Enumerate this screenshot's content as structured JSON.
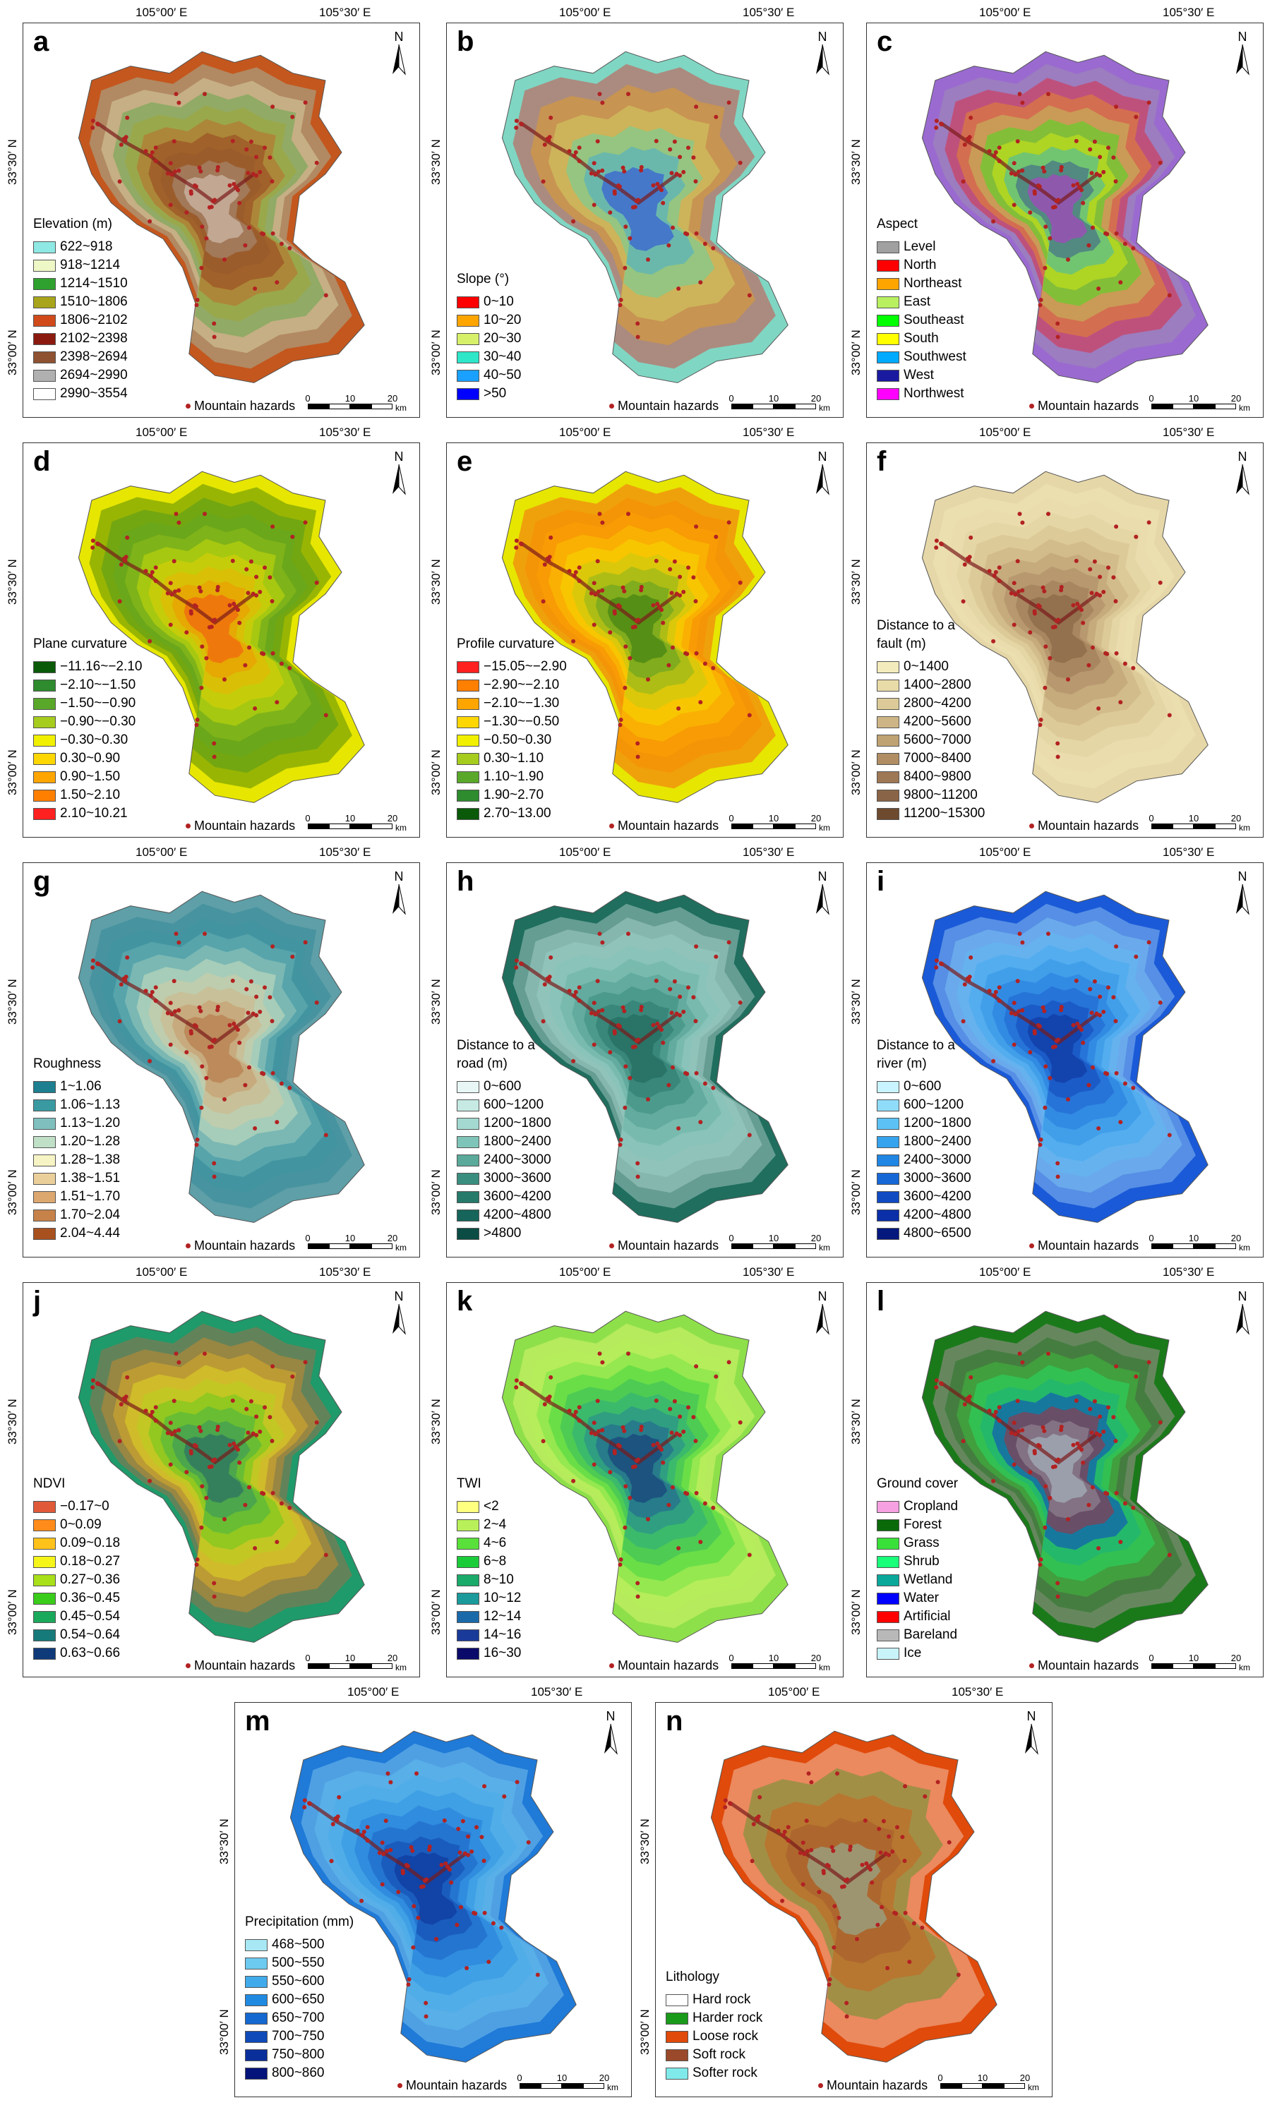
{
  "axes": {
    "lon_left": "105°00′ E",
    "lon_right": "105°30′ E",
    "lat_top": "33°30′ N",
    "lat_bottom": "33°00′ N"
  },
  "common": {
    "hazard_label": "Mountain hazards",
    "scale_ticks": [
      "0",
      "10",
      "20"
    ],
    "scale_unit": "km",
    "north": "N",
    "hazard_color": "#b22222"
  },
  "panels": [
    {
      "label": "a",
      "title": "Elevation (m)",
      "base": "#c4571e",
      "items": [
        {
          "text": "622~918",
          "color": "#8ee8e3"
        },
        {
          "text": "918~1214",
          "color": "#eef7c6"
        },
        {
          "text": "1214~1510",
          "color": "#2ea12e"
        },
        {
          "text": "1510~1806",
          "color": "#a8a51a"
        },
        {
          "text": "1806~2102",
          "color": "#d04a1a"
        },
        {
          "text": "2102~2398",
          "color": "#8b1a0e"
        },
        {
          "text": "2398~2694",
          "color": "#8e5232"
        },
        {
          "text": "2694~2990",
          "color": "#b0b0b0"
        },
        {
          "text": "2990~3554",
          "color": "#ffffff"
        }
      ]
    },
    {
      "label": "b",
      "title": "Slope (°)",
      "base": "#7fd6c3",
      "items": [
        {
          "text": "0~10",
          "color": "#ff0000"
        },
        {
          "text": "10~20",
          "color": "#ffa500"
        },
        {
          "text": "20~30",
          "color": "#d6f06a"
        },
        {
          "text": "30~40",
          "color": "#2ee6c8"
        },
        {
          "text": "40~50",
          "color": "#1aa0ff"
        },
        {
          "text": ">50",
          "color": "#0000ff"
        }
      ]
    },
    {
      "label": "c",
      "title": "Aspect",
      "base": "#9a6ad0",
      "items": [
        {
          "text": "Level",
          "color": "#a0a0a0"
        },
        {
          "text": "North",
          "color": "#ff0000"
        },
        {
          "text": "Northeast",
          "color": "#ffa500"
        },
        {
          "text": "East",
          "color": "#b8f060"
        },
        {
          "text": "Southeast",
          "color": "#00ff00"
        },
        {
          "text": "South",
          "color": "#ffff00"
        },
        {
          "text": "Southwest",
          "color": "#00aaff"
        },
        {
          "text": "West",
          "color": "#1a1aa0"
        },
        {
          "text": "Northwest",
          "color": "#ff00ff"
        }
      ]
    },
    {
      "label": "d",
      "title": "Plane curvature",
      "base": "#e6e600",
      "items": [
        {
          "text": "−11.16~−2.10",
          "color": "#0a5a0a"
        },
        {
          "text": "−2.10~−1.50",
          "color": "#2e8b2e"
        },
        {
          "text": "−1.50~−0.90",
          "color": "#5aa82a"
        },
        {
          "text": "−0.90~−0.30",
          "color": "#a6cc1e"
        },
        {
          "text": "−0.30~0.30",
          "color": "#f0f000"
        },
        {
          "text": "0.30~0.90",
          "color": "#ffd700"
        },
        {
          "text": "0.90~1.50",
          "color": "#ffa500"
        },
        {
          "text": "1.50~2.10",
          "color": "#ff7f00"
        },
        {
          "text": "2.10~10.21",
          "color": "#ff2020"
        }
      ]
    },
    {
      "label": "e",
      "title": "Profile curvature",
      "base": "#e6e600",
      "items": [
        {
          "text": "−15.05~−2.90",
          "color": "#ff2020"
        },
        {
          "text": "−2.90~−2.10",
          "color": "#ff7f00"
        },
        {
          "text": "−2.10~−1.30",
          "color": "#ffa500"
        },
        {
          "text": "−1.30~−0.50",
          "color": "#ffd700"
        },
        {
          "text": "−0.50~0.30",
          "color": "#f0f000"
        },
        {
          "text": "0.30~1.10",
          "color": "#a6cc1e"
        },
        {
          "text": "1.10~1.90",
          "color": "#5aa82a"
        },
        {
          "text": "1.90~2.70",
          "color": "#2e8b2e"
        },
        {
          "text": "2.70~13.00",
          "color": "#0a5a0a"
        }
      ]
    },
    {
      "label": "f",
      "title": "Distance to a fault (m)",
      "base": "#e6d7a8",
      "items": [
        {
          "text": "0~1400",
          "color": "#f3ebbd"
        },
        {
          "text": "1400~2800",
          "color": "#e8dba8"
        },
        {
          "text": "2800~4200",
          "color": "#dccb98"
        },
        {
          "text": "4200~5600",
          "color": "#cdb585"
        },
        {
          "text": "5600~7000",
          "color": "#bfa273"
        },
        {
          "text": "7000~8400",
          "color": "#b08d63"
        },
        {
          "text": "8400~9800",
          "color": "#9e7855"
        },
        {
          "text": "9800~11200",
          "color": "#8a6446"
        },
        {
          "text": "11200~15300",
          "color": "#6e4a2e"
        }
      ]
    },
    {
      "label": "g",
      "title": "Roughness",
      "base": "#5e9fa8",
      "items": [
        {
          "text": "1~1.06",
          "color": "#1d7f8f"
        },
        {
          "text": "1.06~1.13",
          "color": "#3a9aa2"
        },
        {
          "text": "1.13~1.20",
          "color": "#7fc0bf"
        },
        {
          "text": "1.20~1.28",
          "color": "#bfdfc6"
        },
        {
          "text": "1.28~1.38",
          "color": "#f6f4c4"
        },
        {
          "text": "1.38~1.51",
          "color": "#ebcf9a"
        },
        {
          "text": "1.51~1.70",
          "color": "#dca870"
        },
        {
          "text": "1.70~2.04",
          "color": "#c7824a"
        },
        {
          "text": "2.04~4.44",
          "color": "#a8501e"
        }
      ]
    },
    {
      "label": "h",
      "title": "Distance to a road (m)",
      "base": "#1f6e5e",
      "items": [
        {
          "text": "0~600",
          "color": "#e8f7f5"
        },
        {
          "text": "600~1200",
          "color": "#c6e9e3"
        },
        {
          "text": "1200~1800",
          "color": "#a3d9d0"
        },
        {
          "text": "1800~2400",
          "color": "#7fc4b8"
        },
        {
          "text": "2400~3000",
          "color": "#5aa99a"
        },
        {
          "text": "3000~3600",
          "color": "#3a8e80"
        },
        {
          "text": "3600~4200",
          "color": "#257a6a"
        },
        {
          "text": "4200~4800",
          "color": "#16655a"
        },
        {
          "text": ">4800",
          "color": "#0b4d44"
        }
      ]
    },
    {
      "label": "i",
      "title": "Distance to a river (m)",
      "base": "#1a5ad8",
      "items": [
        {
          "text": "0~600",
          "color": "#c8f3ff"
        },
        {
          "text": "600~1200",
          "color": "#8fdcfa"
        },
        {
          "text": "1200~1800",
          "color": "#5cc2f5"
        },
        {
          "text": "1800~2400",
          "color": "#35a3ee"
        },
        {
          "text": "2400~3000",
          "color": "#1f86e3"
        },
        {
          "text": "3000~3600",
          "color": "#1668d6"
        },
        {
          "text": "3600~4200",
          "color": "#104bc2"
        },
        {
          "text": "4200~4800",
          "color": "#0a2fa8"
        },
        {
          "text": "4800~6500",
          "color": "#05187e"
        }
      ]
    },
    {
      "label": "j",
      "title": "NDVI",
      "base": "#1f9a6a",
      "items": [
        {
          "text": "−0.17~0",
          "color": "#e05a3a"
        },
        {
          "text": "0~0.09",
          "color": "#ff8c1a"
        },
        {
          "text": "0.09~0.18",
          "color": "#ffc21a"
        },
        {
          "text": "0.18~0.27",
          "color": "#f5f51a"
        },
        {
          "text": "0.27~0.36",
          "color": "#a8e01a"
        },
        {
          "text": "0.36~0.45",
          "color": "#3acc1a"
        },
        {
          "text": "0.45~0.54",
          "color": "#1aa85a"
        },
        {
          "text": "0.54~0.64",
          "color": "#177a7a"
        },
        {
          "text": "0.63~0.66",
          "color": "#0f3a7a"
        }
      ]
    },
    {
      "label": "k",
      "title": "TWI",
      "base": "#8ee04a",
      "items": [
        {
          "text": "<2",
          "color": "#ffff80"
        },
        {
          "text": "2~4",
          "color": "#b8f05a"
        },
        {
          "text": "4~6",
          "color": "#5ae03a"
        },
        {
          "text": "6~8",
          "color": "#1acc3a"
        },
        {
          "text": "8~10",
          "color": "#1aaa6a"
        },
        {
          "text": "10~12",
          "color": "#1a9a9a"
        },
        {
          "text": "12~14",
          "color": "#1a6aaa"
        },
        {
          "text": "14~16",
          "color": "#1a3a9a"
        },
        {
          "text": "16~30",
          "color": "#0a0a6a"
        }
      ]
    },
    {
      "label": "l",
      "title": "Ground cover",
      "base": "#1a7a1a",
      "items": [
        {
          "text": "Cropland",
          "color": "#f5a0e0"
        },
        {
          "text": "Forest",
          "color": "#0a6a0a"
        },
        {
          "text": "Grass",
          "color": "#3ae03a"
        },
        {
          "text": "Shrub",
          "color": "#1aff7a"
        },
        {
          "text": "Wetland",
          "color": "#0aa89a"
        },
        {
          "text": "Water",
          "color": "#0000ff"
        },
        {
          "text": "Artificial",
          "color": "#ff0000"
        },
        {
          "text": "Bareland",
          "color": "#b8b8b8"
        },
        {
          "text": "Ice",
          "color": "#c8f3f8"
        }
      ]
    },
    {
      "label": "m",
      "title": "Precipitation (mm)",
      "base": "#1f7ad8",
      "items": [
        {
          "text": "468~500",
          "color": "#a8e8f5"
        },
        {
          "text": "500~550",
          "color": "#6ccaf0"
        },
        {
          "text": "550~600",
          "color": "#40aaea"
        },
        {
          "text": "600~650",
          "color": "#1f8ae0"
        },
        {
          "text": "650~700",
          "color": "#1468d0"
        },
        {
          "text": "700~750",
          "color": "#0f4ab8"
        },
        {
          "text": "750~800",
          "color": "#0a2e9a"
        },
        {
          "text": "800~860",
          "color": "#05147a"
        }
      ]
    },
    {
      "label": "n",
      "title": "Lithology",
      "base": "#e04a0a",
      "items": [
        {
          "text": "Hard rock",
          "color": "#ffffff"
        },
        {
          "text": "Harder rock",
          "color": "#1a9a1a"
        },
        {
          "text": "Loose rock",
          "color": "#e04a0a"
        },
        {
          "text": "Soft rock",
          "color": "#9a4a2a"
        },
        {
          "text": "Softer rock",
          "color": "#80eaea"
        }
      ]
    }
  ]
}
